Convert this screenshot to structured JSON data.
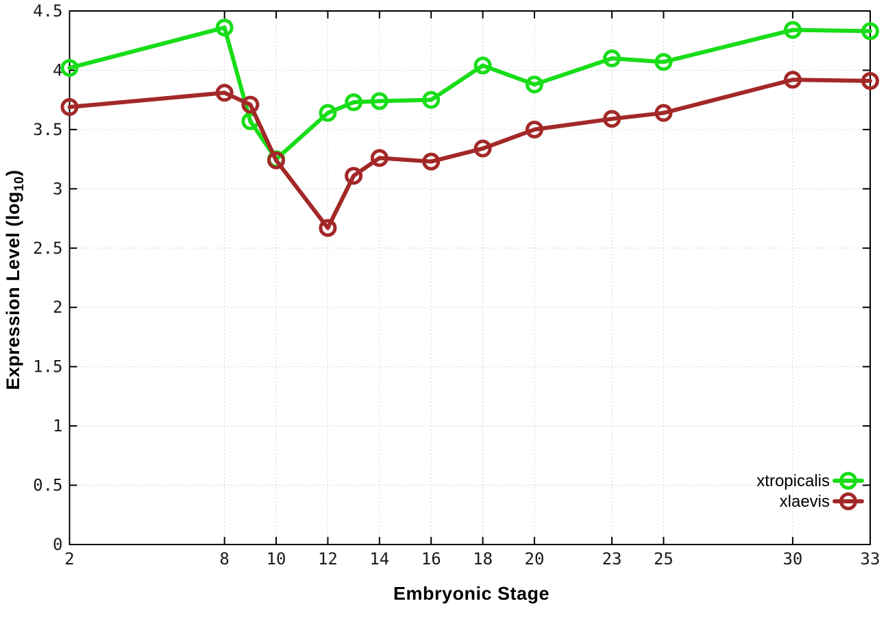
{
  "labels": {
    "ylabel_main": "Expression Level (log",
    "ylabel_sub": "10",
    "ylabel_close": ")"
  },
  "chart_data": {
    "type": "line",
    "title": "",
    "xlabel": "Embryonic Stage",
    "ylabel": "Expression Level (log10)",
    "xlim": [
      2,
      33
    ],
    "ylim": [
      0,
      4.5
    ],
    "grid": true,
    "legend_position": "bottom-right",
    "x": [
      2,
      8,
      9,
      10,
      12,
      13,
      14,
      16,
      18,
      20,
      23,
      25,
      30,
      33
    ],
    "xticks": [
      {
        "v": 2,
        "label": "2"
      },
      {
        "v": 8,
        "label": "8"
      },
      {
        "v": 10,
        "label": "10"
      },
      {
        "v": 12,
        "label": "12"
      },
      {
        "v": 14,
        "label": "14"
      },
      {
        "v": 16,
        "label": "16"
      },
      {
        "v": 18,
        "label": "18"
      },
      {
        "v": 20,
        "label": "20"
      },
      {
        "v": 23,
        "label": "23"
      },
      {
        "v": 25,
        "label": "25"
      },
      {
        "v": 30,
        "label": "30"
      },
      {
        "v": 33,
        "label": "33"
      }
    ],
    "yticks": [
      {
        "v": 0,
        "label": "0"
      },
      {
        "v": 0.5,
        "label": "0.5"
      },
      {
        "v": 1,
        "label": "1"
      },
      {
        "v": 1.5,
        "label": "1.5"
      },
      {
        "v": 2,
        "label": "2"
      },
      {
        "v": 2.5,
        "label": "2.5"
      },
      {
        "v": 3,
        "label": "3"
      },
      {
        "v": 3.5,
        "label": "3.5"
      },
      {
        "v": 4,
        "label": "4"
      },
      {
        "v": 4.5,
        "label": "4.5"
      }
    ],
    "series": [
      {
        "name": "xtropicalis",
        "color": "#18dd18",
        "values": [
          4.02,
          4.36,
          3.57,
          3.25,
          3.64,
          3.73,
          3.74,
          3.75,
          4.04,
          3.88,
          4.1,
          4.07,
          4.34,
          4.33
        ]
      },
      {
        "name": "xlaevis",
        "color": "#a32828",
        "values": [
          3.69,
          3.81,
          3.71,
          3.24,
          2.67,
          3.11,
          3.26,
          3.23,
          3.34,
          3.5,
          3.59,
          3.64,
          3.92,
          3.91
        ]
      }
    ],
    "style": {
      "grid_color": "#a8a8a8",
      "border_color": "#000000",
      "tick_label_color": "#1a1a1a",
      "background": "#ffffff"
    }
  }
}
